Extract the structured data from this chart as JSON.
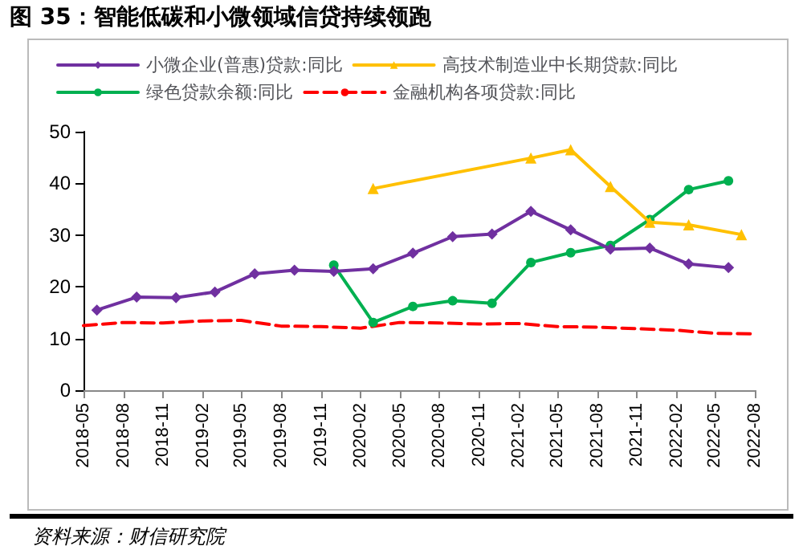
{
  "chart_data": {
    "type": "line",
    "title": "图 35：智能低碳和小微领域信贷持续领跑",
    "annotations": [
      "资料来源：财信研究院"
    ],
    "series": [
      {
        "name": "小微企业(普惠)贷款:同比",
        "color": "#7030a0",
        "marker": "diamond",
        "x": [
          "2018-06",
          "2018-09",
          "2018-12",
          "2019-03",
          "2019-06",
          "2019-09",
          "2019-12",
          "2020-03",
          "2020-06",
          "2020-09",
          "2020-12",
          "2021-03",
          "2021-06",
          "2021-09",
          "2021-12",
          "2022-03",
          "2022-06"
        ],
        "values": [
          15.5,
          18.0,
          17.9,
          19.0,
          22.5,
          23.2,
          23.0,
          23.5,
          26.5,
          29.7,
          30.2,
          34.6,
          31.0,
          27.3,
          27.5,
          24.4,
          23.7
        ]
      },
      {
        "name": "高技术制造业中长期贷款:同比",
        "color": "#ffc000",
        "marker": "triangle",
        "x": [
          "2020-03",
          "2021-03",
          "2021-06",
          "2021-09",
          "2021-12",
          "2022-03",
          "2022-07"
        ],
        "values": [
          39.0,
          44.9,
          46.5,
          39.4,
          32.5,
          32.0,
          30.1
        ]
      },
      {
        "name": "绿色贷款余额:同比",
        "color": "#00b050",
        "marker": "circle",
        "x": [
          "2019-12",
          "2020-03",
          "2020-06",
          "2020-09",
          "2020-12",
          "2021-03",
          "2021-06",
          "2021-09",
          "2021-12",
          "2022-03",
          "2022-06"
        ],
        "values": [
          24.2,
          13.1,
          16.2,
          17.3,
          16.8,
          24.7,
          26.6,
          28.0,
          33.0,
          38.8,
          40.5
        ]
      },
      {
        "name": "金融机构各项贷款:同比",
        "color": "#ff0000",
        "marker": "none",
        "line_style": "dashed",
        "x": [
          "2018-05",
          "2018-08",
          "2018-11",
          "2019-02",
          "2019-05",
          "2019-08",
          "2019-11",
          "2020-02",
          "2020-05",
          "2020-08",
          "2020-11",
          "2021-02",
          "2021-05",
          "2021-08",
          "2021-11",
          "2022-02",
          "2022-05",
          "2022-08"
        ],
        "values": [
          12.5,
          13.1,
          13.0,
          13.4,
          13.5,
          12.4,
          12.3,
          12.0,
          13.1,
          13.0,
          12.8,
          12.9,
          12.3,
          12.2,
          11.9,
          11.6,
          11.0,
          10.9
        ]
      }
    ],
    "xlim": [
      "2018-05",
      "2022-08"
    ],
    "xticks": [
      "2018-05",
      "2018-08",
      "2018-11",
      "2019-02",
      "2019-05",
      "2019-08",
      "2019-11",
      "2020-02",
      "2020-05",
      "2020-08",
      "2020-11",
      "2021-02",
      "2021-05",
      "2021-08",
      "2021-11",
      "2022-02",
      "2022-05",
      "2022-08"
    ],
    "ylim": [
      0,
      50
    ],
    "yticks": [
      0,
      10,
      20,
      30,
      40,
      50
    ],
    "grid": false,
    "legend": "top"
  }
}
